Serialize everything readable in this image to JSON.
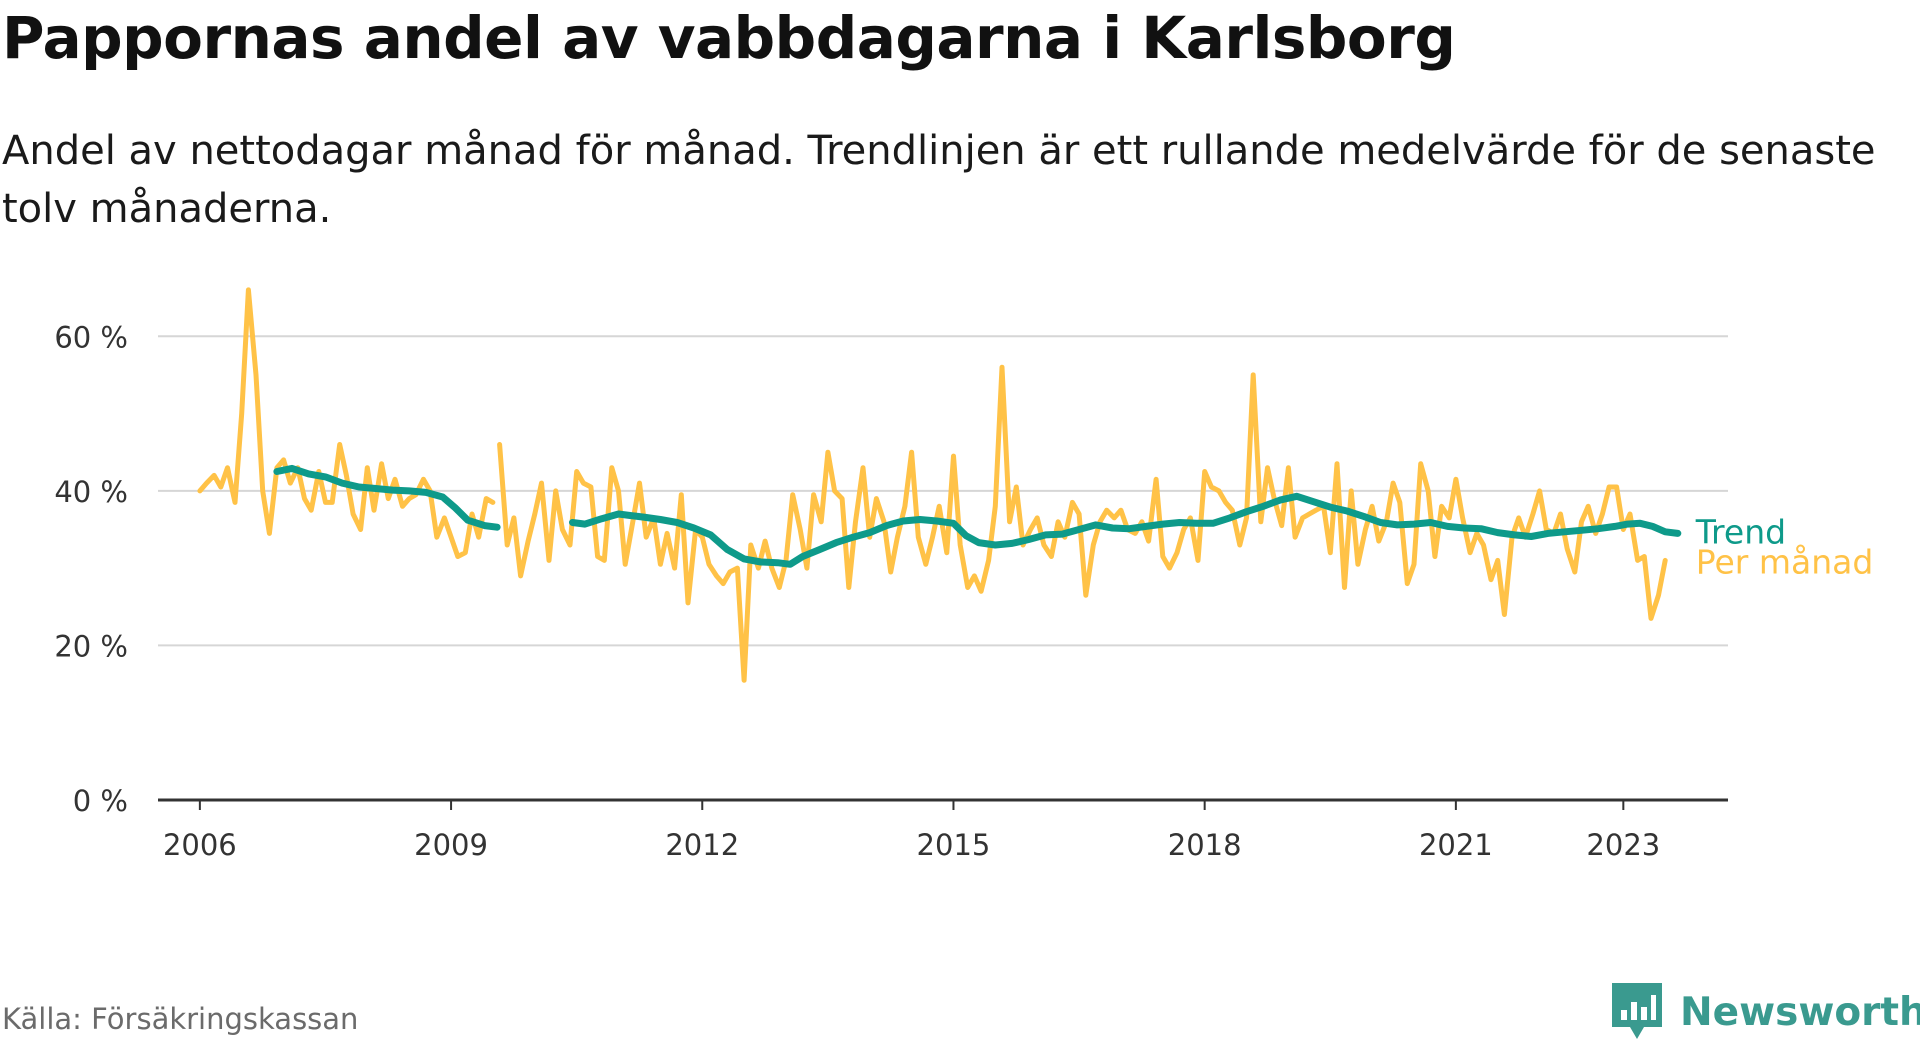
{
  "title": "Pappornas andel av vabbdagarna i Karlsborg",
  "subtitle": "Andel av nettodagar månad för månad. Trendlinjen är ett rullande medelvärde för de senaste tolv månaderna.",
  "source": "Källa: Försäkringskassan",
  "brand": {
    "name": "Newsworthy",
    "icon": "newsworthy-logo-icon",
    "color": "#3a9a8f"
  },
  "chart_data": {
    "type": "line",
    "ylim": [
      0,
      70
    ],
    "xlim": [
      2005.5,
      2024.25
    ],
    "y_ticks": [
      0,
      20,
      40,
      60
    ],
    "y_tick_labels": [
      "0 %",
      "20 %",
      "40 %",
      "60 %"
    ],
    "x_ticks": [
      2006,
      2009,
      2012,
      2015,
      2018,
      2021,
      2023
    ],
    "x_tick_labels": [
      "2006",
      "2009",
      "2012",
      "2015",
      "2018",
      "2021",
      "2023"
    ],
    "grid": true,
    "legend": "direct labels at line ends (right)",
    "series": [
      {
        "name": "Trend",
        "color": "#0e9a8a",
        "points": [
          [
            2006.92,
            42.5
          ],
          [
            2007.1,
            42.9
          ],
          [
            2007.3,
            42.2
          ],
          [
            2007.5,
            41.8
          ],
          [
            2007.7,
            41.0
          ],
          [
            2007.9,
            40.5
          ],
          [
            2008.1,
            40.3
          ],
          [
            2008.3,
            40.1
          ],
          [
            2008.5,
            40.0
          ],
          [
            2008.7,
            39.8
          ],
          [
            2008.9,
            39.2
          ],
          [
            2009.05,
            37.8
          ],
          [
            2009.2,
            36.2
          ],
          [
            2009.4,
            35.5
          ],
          [
            2009.55,
            35.3
          ],
          null,
          [
            2010.45,
            35.9
          ],
          [
            2010.6,
            35.7
          ],
          [
            2010.8,
            36.4
          ],
          [
            2011.0,
            37.0
          ],
          [
            2011.15,
            36.8
          ],
          [
            2011.3,
            36.6
          ],
          [
            2011.5,
            36.3
          ],
          [
            2011.7,
            35.9
          ],
          [
            2011.9,
            35.2
          ],
          [
            2012.1,
            34.3
          ],
          [
            2012.3,
            32.4
          ],
          [
            2012.5,
            31.2
          ],
          [
            2012.7,
            30.8
          ],
          [
            2012.9,
            30.7
          ],
          [
            2013.05,
            30.5
          ],
          [
            2013.2,
            31.5
          ],
          [
            2013.4,
            32.4
          ],
          [
            2013.6,
            33.3
          ],
          [
            2013.8,
            34.0
          ],
          [
            2014.0,
            34.6
          ],
          [
            2014.2,
            35.5
          ],
          [
            2014.4,
            36.1
          ],
          [
            2014.6,
            36.3
          ],
          [
            2014.8,
            36.1
          ],
          [
            2015.0,
            35.8
          ],
          [
            2015.15,
            34.2
          ],
          [
            2015.3,
            33.3
          ],
          [
            2015.5,
            33.0
          ],
          [
            2015.7,
            33.2
          ],
          [
            2015.9,
            33.7
          ],
          [
            2016.1,
            34.3
          ],
          [
            2016.3,
            34.4
          ],
          [
            2016.5,
            35.0
          ],
          [
            2016.7,
            35.6
          ],
          [
            2016.9,
            35.2
          ],
          [
            2017.1,
            35.1
          ],
          [
            2017.3,
            35.4
          ],
          [
            2017.5,
            35.7
          ],
          [
            2017.7,
            35.9
          ],
          [
            2017.9,
            35.8
          ],
          [
            2018.1,
            35.8
          ],
          [
            2018.3,
            36.5
          ],
          [
            2018.5,
            37.3
          ],
          [
            2018.7,
            38.0
          ],
          [
            2018.9,
            38.8
          ],
          [
            2019.1,
            39.3
          ],
          [
            2019.3,
            38.6
          ],
          [
            2019.5,
            37.9
          ],
          [
            2019.7,
            37.4
          ],
          [
            2019.9,
            36.7
          ],
          [
            2020.1,
            35.9
          ],
          [
            2020.3,
            35.6
          ],
          [
            2020.5,
            35.7
          ],
          [
            2020.7,
            35.9
          ],
          [
            2020.9,
            35.4
          ],
          [
            2021.1,
            35.2
          ],
          [
            2021.3,
            35.1
          ],
          [
            2021.5,
            34.6
          ],
          [
            2021.7,
            34.3
          ],
          [
            2021.9,
            34.1
          ],
          [
            2022.1,
            34.5
          ],
          [
            2022.3,
            34.7
          ],
          [
            2022.5,
            34.9
          ],
          [
            2022.7,
            35.1
          ],
          [
            2022.9,
            35.4
          ],
          [
            2023.05,
            35.7
          ],
          [
            2023.2,
            35.8
          ],
          [
            2023.35,
            35.4
          ],
          [
            2023.5,
            34.7
          ],
          [
            2023.65,
            34.5
          ]
        ]
      },
      {
        "name": "Per månad",
        "color": "#ffc247",
        "points": [
          [
            2006.0,
            40.0
          ],
          [
            2006.08,
            41.0
          ],
          [
            2006.17,
            42.0
          ],
          [
            2006.25,
            40.5
          ],
          [
            2006.33,
            43.0
          ],
          [
            2006.42,
            38.5
          ],
          [
            2006.5,
            50.0
          ],
          [
            2006.58,
            66.0
          ],
          [
            2006.67,
            55.0
          ],
          [
            2006.75,
            40.0
          ],
          [
            2006.83,
            34.5
          ],
          [
            2006.92,
            43.0
          ],
          [
            2007.0,
            44.0
          ],
          [
            2007.08,
            41.0
          ],
          [
            2007.17,
            43.0
          ],
          [
            2007.25,
            39.0
          ],
          [
            2007.33,
            37.5
          ],
          [
            2007.42,
            42.5
          ],
          [
            2007.5,
            38.5
          ],
          [
            2007.58,
            38.5
          ],
          [
            2007.67,
            46.0
          ],
          [
            2007.75,
            42.0
          ],
          [
            2007.83,
            37.0
          ],
          [
            2007.92,
            35.0
          ],
          [
            2008.0,
            43.0
          ],
          [
            2008.08,
            37.5
          ],
          [
            2008.17,
            43.5
          ],
          [
            2008.25,
            39.0
          ],
          [
            2008.33,
            41.5
          ],
          [
            2008.42,
            38.0
          ],
          [
            2008.5,
            39.0
          ],
          [
            2008.58,
            39.5
          ],
          [
            2008.67,
            41.5
          ],
          [
            2008.75,
            40.0
          ],
          [
            2008.83,
            34.0
          ],
          [
            2008.92,
            36.5
          ],
          [
            2009.0,
            34.0
          ],
          [
            2009.08,
            31.5
          ],
          [
            2009.17,
            32.0
          ],
          [
            2009.25,
            37.0
          ],
          [
            2009.33,
            34.0
          ],
          [
            2009.42,
            39.0
          ],
          [
            2009.5,
            38.5
          ],
          null,
          [
            2009.58,
            46.0
          ],
          [
            2009.67,
            33.0
          ],
          [
            2009.75,
            36.5
          ],
          [
            2009.83,
            29.0
          ],
          [
            2009.92,
            33.5
          ],
          [
            2010.0,
            37.0
          ],
          [
            2010.08,
            41.0
          ],
          [
            2010.17,
            31.0
          ],
          [
            2010.25,
            40.0
          ],
          [
            2010.33,
            35.0
          ],
          [
            2010.42,
            33.0
          ],
          [
            2010.5,
            42.5
          ],
          [
            2010.58,
            41.0
          ],
          [
            2010.67,
            40.5
          ],
          [
            2010.75,
            31.5
          ],
          [
            2010.83,
            31.0
          ],
          [
            2010.92,
            43.0
          ],
          [
            2011.0,
            40.0
          ],
          [
            2011.08,
            30.5
          ],
          [
            2011.17,
            36.0
          ],
          [
            2011.25,
            41.0
          ],
          [
            2011.33,
            34.0
          ],
          [
            2011.42,
            36.5
          ],
          [
            2011.5,
            30.5
          ],
          [
            2011.58,
            34.5
          ],
          [
            2011.67,
            30.0
          ],
          [
            2011.75,
            39.5
          ],
          [
            2011.83,
            25.5
          ],
          [
            2011.92,
            35.0
          ],
          [
            2012.0,
            34.0
          ],
          [
            2012.08,
            30.5
          ],
          [
            2012.17,
            29.0
          ],
          [
            2012.25,
            28.0
          ],
          [
            2012.33,
            29.5
          ],
          [
            2012.42,
            30.0
          ],
          [
            2012.5,
            15.5
          ],
          [
            2012.58,
            33.0
          ],
          [
            2012.67,
            30.0
          ],
          [
            2012.75,
            33.5
          ],
          [
            2012.83,
            30.0
          ],
          [
            2012.92,
            27.5
          ],
          [
            2013.0,
            31.0
          ],
          [
            2013.08,
            39.5
          ],
          [
            2013.17,
            35.0
          ],
          [
            2013.25,
            30.0
          ],
          [
            2013.33,
            39.5
          ],
          [
            2013.42,
            36.0
          ],
          [
            2013.5,
            45.0
          ],
          [
            2013.58,
            40.0
          ],
          [
            2013.67,
            39.0
          ],
          [
            2013.75,
            27.5
          ],
          [
            2013.83,
            36.0
          ],
          [
            2013.92,
            43.0
          ],
          [
            2014.0,
            34.0
          ],
          [
            2014.08,
            39.0
          ],
          [
            2014.17,
            36.0
          ],
          [
            2014.25,
            29.5
          ],
          [
            2014.33,
            34.0
          ],
          [
            2014.42,
            38.0
          ],
          [
            2014.5,
            45.0
          ],
          [
            2014.58,
            34.0
          ],
          [
            2014.67,
            30.5
          ],
          [
            2014.75,
            34.0
          ],
          [
            2014.83,
            38.0
          ],
          [
            2014.92,
            32.0
          ],
          [
            2015.0,
            44.5
          ],
          [
            2015.08,
            33.0
          ],
          [
            2015.17,
            27.5
          ],
          [
            2015.25,
            29.0
          ],
          [
            2015.33,
            27.0
          ],
          [
            2015.42,
            31.0
          ],
          [
            2015.5,
            38.0
          ],
          [
            2015.58,
            56.0
          ],
          [
            2015.67,
            36.0
          ],
          [
            2015.75,
            40.5
          ],
          [
            2015.83,
            33.0
          ],
          [
            2015.92,
            35.0
          ],
          [
            2016.0,
            36.5
          ],
          [
            2016.08,
            33.0
          ],
          [
            2016.17,
            31.5
          ],
          [
            2016.25,
            36.0
          ],
          [
            2016.33,
            34.0
          ],
          [
            2016.42,
            38.5
          ],
          [
            2016.5,
            37.0
          ],
          [
            2016.58,
            26.5
          ],
          [
            2016.67,
            33.0
          ],
          [
            2016.75,
            36.0
          ],
          [
            2016.83,
            37.5
          ],
          [
            2016.92,
            36.5
          ],
          [
            2017.0,
            37.5
          ],
          [
            2017.08,
            35.0
          ],
          [
            2017.17,
            34.5
          ],
          [
            2017.25,
            36.0
          ],
          [
            2017.33,
            33.5
          ],
          [
            2017.42,
            41.5
          ],
          [
            2017.5,
            31.5
          ],
          [
            2017.58,
            30.0
          ],
          [
            2017.67,
            32.0
          ],
          [
            2017.75,
            35.0
          ],
          [
            2017.83,
            36.5
          ],
          [
            2017.92,
            31.0
          ],
          [
            2018.0,
            42.5
          ],
          [
            2018.08,
            40.5
          ],
          [
            2018.17,
            40.0
          ],
          [
            2018.25,
            38.5
          ],
          [
            2018.33,
            37.5
          ],
          [
            2018.42,
            33.0
          ],
          [
            2018.5,
            36.5
          ],
          [
            2018.58,
            55.0
          ],
          [
            2018.67,
            36.0
          ],
          [
            2018.75,
            43.0
          ],
          [
            2018.83,
            39.0
          ],
          [
            2018.92,
            35.5
          ],
          [
            2019.0,
            43.0
          ],
          [
            2019.08,
            34.0
          ],
          [
            2019.17,
            36.5
          ],
          [
            2019.25,
            37.0
          ],
          [
            2019.33,
            37.5
          ],
          [
            2019.42,
            38.0
          ],
          [
            2019.5,
            32.0
          ],
          [
            2019.58,
            43.5
          ],
          [
            2019.67,
            27.5
          ],
          [
            2019.75,
            40.0
          ],
          [
            2019.83,
            30.5
          ],
          [
            2019.92,
            35.0
          ],
          [
            2020.0,
            38.0
          ],
          [
            2020.08,
            33.5
          ],
          [
            2020.17,
            36.0
          ],
          [
            2020.25,
            41.0
          ],
          [
            2020.33,
            38.5
          ],
          [
            2020.42,
            28.0
          ],
          [
            2020.5,
            30.5
          ],
          [
            2020.58,
            43.5
          ],
          [
            2020.67,
            40.0
          ],
          [
            2020.75,
            31.5
          ],
          [
            2020.83,
            38.0
          ],
          [
            2020.92,
            36.5
          ],
          [
            2021.0,
            41.5
          ],
          [
            2021.08,
            36.5
          ],
          [
            2021.17,
            32.0
          ],
          [
            2021.25,
            34.5
          ],
          [
            2021.33,
            33.0
          ],
          [
            2021.42,
            28.5
          ],
          [
            2021.5,
            31.0
          ],
          [
            2021.58,
            24.0
          ],
          [
            2021.67,
            34.0
          ],
          [
            2021.75,
            36.5
          ],
          [
            2021.83,
            34.0
          ],
          [
            2021.92,
            37.0
          ],
          [
            2022.0,
            40.0
          ],
          [
            2022.08,
            35.0
          ],
          [
            2022.17,
            34.5
          ],
          [
            2022.25,
            37.0
          ],
          [
            2022.33,
            32.5
          ],
          [
            2022.42,
            29.5
          ],
          [
            2022.5,
            36.0
          ],
          [
            2022.58,
            38.0
          ],
          [
            2022.67,
            34.5
          ],
          [
            2022.75,
            37.0
          ],
          [
            2022.83,
            40.5
          ],
          [
            2022.92,
            40.5
          ],
          [
            2023.0,
            35.0
          ],
          [
            2023.08,
            37.0
          ],
          [
            2023.17,
            31.0
          ],
          [
            2023.25,
            31.5
          ],
          [
            2023.33,
            23.5
          ],
          [
            2023.42,
            26.5
          ],
          [
            2023.5,
            31.0
          ]
        ]
      }
    ]
  }
}
